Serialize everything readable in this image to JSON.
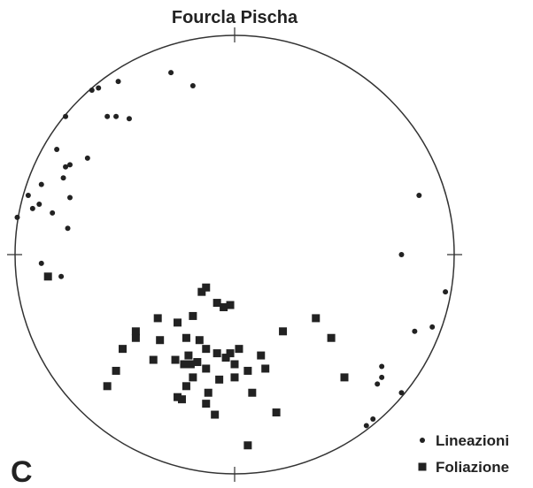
{
  "chart_data": {
    "type": "scatter",
    "title": "Fourcla Pischa",
    "panel_label": "C",
    "xlim": [
      -1,
      1
    ],
    "ylim": [
      -1,
      1
    ],
    "series": [
      {
        "name": "Lineazioni",
        "color": "#222222",
        "marker": "circle",
        "x": [
          -0.29,
          -0.19,
          -0.62,
          -0.65,
          -0.53,
          -0.77,
          -0.58,
          -0.54,
          -0.48,
          -0.81,
          -0.67,
          -0.75,
          -0.77,
          -0.88,
          -0.78,
          -0.75,
          -0.94,
          -0.89,
          -0.92,
          -0.83,
          -0.99,
          -0.76,
          0.84,
          0.76,
          -0.88,
          -0.79,
          0.96,
          0.9,
          0.82,
          0.67,
          0.67,
          0.65,
          0.76,
          0.63,
          0.6
        ],
        "values": [
          0.83,
          0.77,
          0.76,
          0.75,
          0.79,
          0.63,
          0.63,
          0.63,
          0.62,
          0.48,
          0.44,
          0.41,
          0.4,
          0.32,
          0.35,
          0.26,
          0.27,
          0.23,
          0.21,
          0.19,
          0.17,
          0.12,
          0.27,
          0.0,
          -0.04,
          -0.1,
          -0.17,
          -0.33,
          -0.35,
          -0.51,
          -0.56,
          -0.59,
          -0.63,
          -0.75,
          -0.78
        ]
      },
      {
        "name": "Foliazione",
        "color": "#222222",
        "marker": "square",
        "x": [
          -0.85,
          -0.13,
          -0.15,
          -0.08,
          -0.05,
          -0.02,
          -0.35,
          -0.26,
          -0.19,
          0.37,
          0.22,
          0.44,
          -0.45,
          -0.45,
          -0.34,
          -0.22,
          -0.16,
          -0.51,
          -0.13,
          -0.37,
          -0.27,
          -0.21,
          -0.17,
          -0.13,
          -0.08,
          -0.04,
          -0.02,
          0.02,
          0.12,
          -0.2,
          -0.23,
          0.0,
          0.06,
          0.14,
          -0.54,
          -0.19,
          -0.07,
          0.0,
          0.08,
          0.5,
          -0.58,
          -0.22,
          -0.26,
          -0.24,
          -0.12,
          -0.13,
          -0.09,
          0.19,
          0.06
        ],
        "values": [
          -0.1,
          -0.15,
          -0.17,
          -0.22,
          -0.24,
          -0.23,
          -0.29,
          -0.31,
          -0.28,
          -0.29,
          -0.35,
          -0.38,
          -0.35,
          -0.38,
          -0.39,
          -0.38,
          -0.39,
          -0.43,
          -0.43,
          -0.48,
          -0.48,
          -0.46,
          -0.49,
          -0.52,
          -0.45,
          -0.47,
          -0.45,
          -0.43,
          -0.46,
          -0.5,
          -0.5,
          -0.5,
          -0.53,
          -0.52,
          -0.53,
          -0.56,
          -0.57,
          -0.56,
          -0.63,
          -0.56,
          -0.6,
          -0.6,
          -0.65,
          -0.66,
          -0.63,
          -0.68,
          -0.73,
          -0.72,
          -0.87
        ]
      }
    ]
  }
}
